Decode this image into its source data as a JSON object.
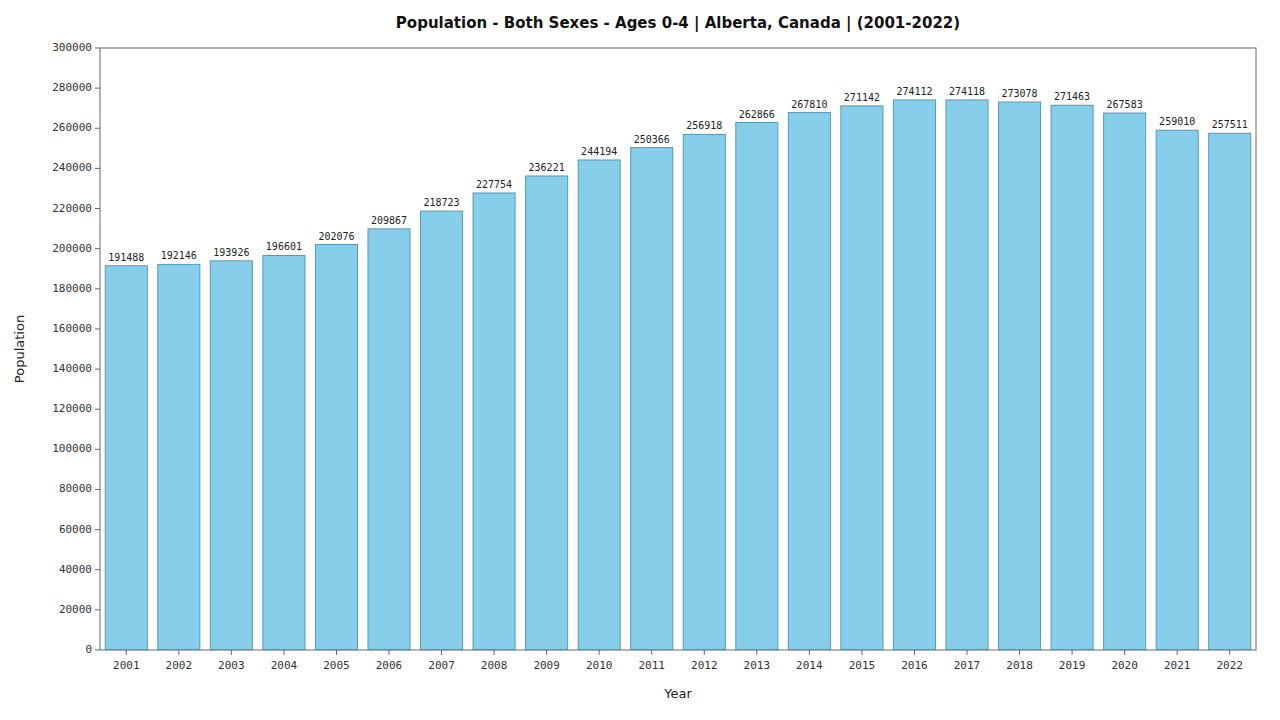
{
  "chart_data": {
    "type": "bar",
    "title": "Population - Both Sexes - Ages 0-4 | Alberta, Canada |  (2001-2022)",
    "xlabel": "Year",
    "ylabel": "Population",
    "categories": [
      "2001",
      "2002",
      "2003",
      "2004",
      "2005",
      "2006",
      "2007",
      "2008",
      "2009",
      "2010",
      "2011",
      "2012",
      "2013",
      "2014",
      "2015",
      "2016",
      "2017",
      "2018",
      "2019",
      "2020",
      "2021",
      "2022"
    ],
    "values": [
      191488,
      192146,
      193926,
      196601,
      202076,
      209867,
      218723,
      227754,
      236221,
      244194,
      250366,
      256918,
      262866,
      267810,
      271142,
      274112,
      274118,
      273078,
      271463,
      267583,
      259010,
      257511
    ],
    "color": "#87CEEB",
    "ylim": [
      0,
      300000
    ],
    "yticks": [
      0,
      20000,
      40000,
      60000,
      80000,
      100000,
      120000,
      140000,
      160000,
      180000,
      200000,
      220000,
      240000,
      260000,
      280000,
      300000
    ],
    "grid": false,
    "data_labels": true
  }
}
